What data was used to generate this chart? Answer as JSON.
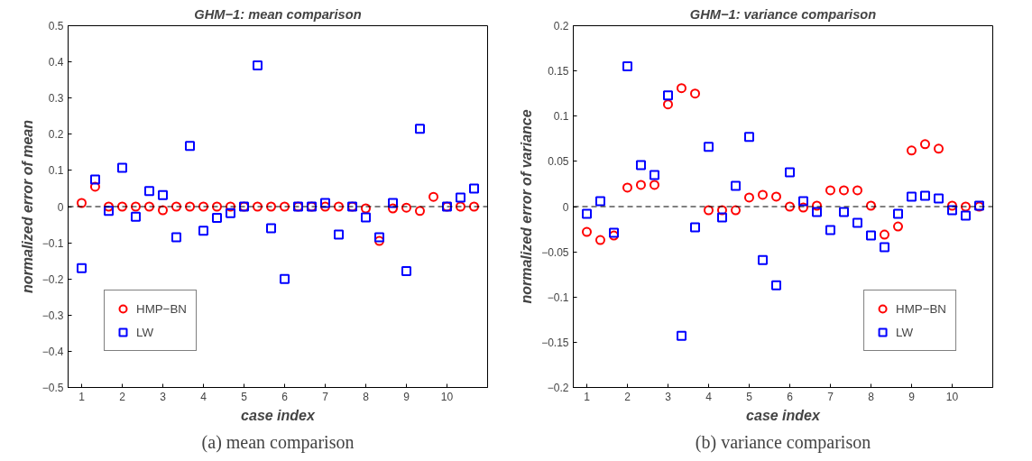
{
  "chart_data": [
    {
      "type": "scatter",
      "title": "GHM−1: mean comparison",
      "xlabel": "case index",
      "ylabel": "normalized error of mean",
      "x": [
        1,
        1.333,
        1.667,
        2,
        2.333,
        2.667,
        3,
        3.333,
        3.667,
        4,
        4.333,
        4.667,
        5,
        5.333,
        5.667,
        6,
        6.333,
        6.667,
        7,
        7.333,
        7.667,
        8,
        8.333,
        8.667,
        9,
        9.333,
        9.667,
        10,
        10.333,
        10.667
      ],
      "series": [
        {
          "name": "HMP−BN",
          "color": "#ff0000",
          "marker": "circle",
          "values": [
            0.01,
            0.055,
            0,
            0,
            0,
            0,
            -0.01,
            0,
            0,
            0,
            0,
            0,
            0,
            0,
            0,
            0,
            0,
            0,
            0,
            0,
            0,
            -0.005,
            -0.095,
            -0.005,
            -0.003,
            -0.012,
            0.027,
            0,
            0,
            0
          ]
        },
        {
          "name": "LW",
          "color": "#0000ff",
          "marker": "square",
          "values": [
            -0.17,
            0.075,
            -0.012,
            0.107,
            -0.028,
            0.043,
            0.032,
            -0.085,
            0.168,
            -0.067,
            -0.031,
            -0.018,
            0,
            0.39,
            -0.06,
            -0.2,
            0,
            0,
            0.01,
            -0.077,
            0,
            -0.03,
            -0.085,
            0.01,
            -0.178,
            0.215,
            null,
            0,
            0.025,
            0.05
          ]
        }
      ],
      "xlim": [
        0.667,
        11
      ],
      "xticks": [
        1,
        2,
        3,
        4,
        5,
        6,
        7,
        8,
        9,
        10
      ],
      "ylim": [
        -0.5,
        0.5
      ],
      "yticks": [
        -0.5,
        -0.4,
        -0.3,
        -0.2,
        -0.1,
        0,
        0.1,
        0.2,
        0.3,
        0.4,
        0.5
      ],
      "ref_lines": [
        {
          "axis": "y",
          "value": 0,
          "color": "#000000",
          "line_style": "dashed"
        }
      ],
      "legend": "bottom left",
      "grid": false,
      "annotations": [
        "(a) mean comparison"
      ]
    },
    {
      "type": "scatter",
      "title": "GHM−1: variance comparison",
      "xlabel": "case index",
      "ylabel": "normalized error of variance",
      "x": [
        1,
        1.333,
        1.667,
        2,
        2.333,
        2.667,
        3,
        3.333,
        3.667,
        4,
        4.333,
        4.667,
        5,
        5.333,
        5.667,
        6,
        6.333,
        6.667,
        7,
        7.333,
        7.667,
        8,
        8.333,
        8.667,
        9,
        9.333,
        9.667,
        10,
        10.333,
        10.667
      ],
      "series": [
        {
          "name": "HMP−BN",
          "color": "#ff0000",
          "marker": "circle",
          "values": [
            -0.028,
            -0.037,
            -0.032,
            0.021,
            0.024,
            0.024,
            0.113,
            0.131,
            0.125,
            -0.004,
            -0.004,
            -0.004,
            0.01,
            0.013,
            0.011,
            0,
            -0.001,
            0.001,
            0.018,
            0.018,
            0.018,
            0.001,
            -0.031,
            -0.022,
            0.062,
            0.069,
            0.064,
            0.001,
            0,
            0
          ]
        },
        {
          "name": "LW",
          "color": "#0000ff",
          "marker": "square",
          "values": [
            -0.008,
            0.006,
            -0.029,
            0.155,
            0.046,
            0.035,
            0.123,
            -0.143,
            -0.023,
            0.066,
            -0.012,
            0.023,
            0.077,
            -0.059,
            -0.087,
            0.038,
            0.006,
            -0.006,
            -0.026,
            -0.006,
            -0.018,
            -0.032,
            -0.045,
            -0.008,
            0.011,
            0.012,
            0.009,
            -0.004,
            -0.01,
            0.001
          ]
        }
      ],
      "xlim": [
        0.667,
        11
      ],
      "xticks": [
        1,
        2,
        3,
        4,
        5,
        6,
        7,
        8,
        9,
        10
      ],
      "ylim": [
        -0.2,
        0.2
      ],
      "yticks": [
        -0.2,
        -0.15,
        -0.1,
        -0.05,
        0,
        0.05,
        0.1,
        0.15,
        0.2
      ],
      "ref_lines": [
        {
          "axis": "y",
          "value": 0,
          "color": "#000000",
          "line_style": "dashed"
        }
      ],
      "legend": "bottom right",
      "grid": false,
      "annotations": [
        "(b) variance comparison"
      ]
    }
  ]
}
